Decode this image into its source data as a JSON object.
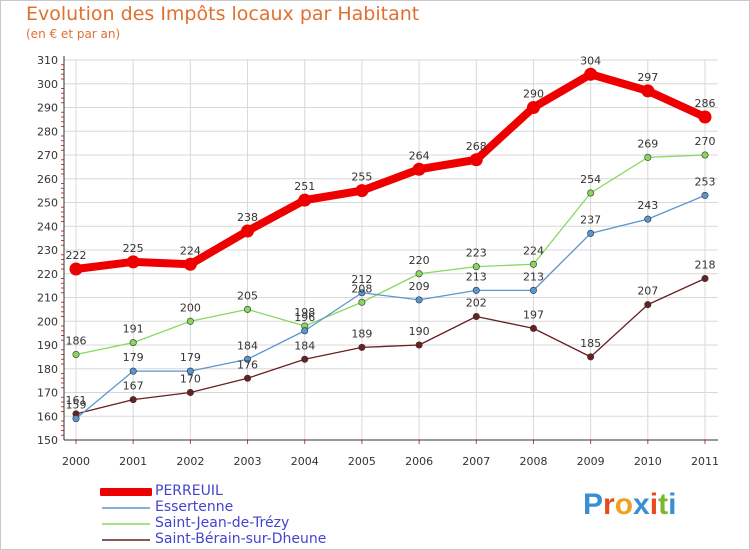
{
  "colors": {
    "title": "#e07030",
    "legend_text": "#4444cc",
    "axis": "#333333",
    "grid": "#d8d8d8"
  },
  "chart_data": {
    "type": "line",
    "title": "Evolution des Impôts locaux par Habitant",
    "subtitle": "(en € et par an)",
    "xlabel": "",
    "ylabel": "",
    "ylim": [
      150,
      310
    ],
    "yticks": [
      150,
      160,
      170,
      180,
      190,
      200,
      210,
      220,
      230,
      240,
      250,
      260,
      270,
      280,
      290,
      300,
      310
    ],
    "categories": [
      "2000",
      "2001",
      "2002",
      "2003",
      "2004",
      "2005",
      "2006",
      "2007",
      "2008",
      "2009",
      "2010",
      "2011"
    ],
    "grid": true,
    "legend_position": "bottom-left",
    "series": [
      {
        "name": "PERREUIL",
        "color": "#ee0000",
        "values": [
          222,
          225,
          224,
          238,
          251,
          255,
          264,
          268,
          290,
          304,
          297,
          286
        ]
      },
      {
        "name": "Essertenne",
        "color": "#5a96d2",
        "values": [
          159,
          179,
          179,
          184,
          196,
          212,
          209,
          213,
          213,
          237,
          243,
          253
        ]
      },
      {
        "name": "Saint-Jean-de-Trézy",
        "color": "#88d860",
        "values": [
          186,
          191,
          200,
          205,
          198,
          208,
          220,
          223,
          224,
          254,
          269,
          270
        ]
      },
      {
        "name": "Saint-Bérain-sur-Dheune",
        "color": "#6a2020",
        "values": [
          161,
          167,
          170,
          176,
          184,
          189,
          190,
          202,
          197,
          185,
          207,
          218
        ]
      }
    ]
  },
  "logo": {
    "letters": [
      "P",
      "r",
      "o",
      "x",
      "i",
      "t",
      "i"
    ],
    "colors": [
      "#3a8fd0",
      "#e84a20",
      "#f0a020",
      "#3a8fd0",
      "#e84a20",
      "#78b830",
      "#3a8fd0"
    ]
  }
}
